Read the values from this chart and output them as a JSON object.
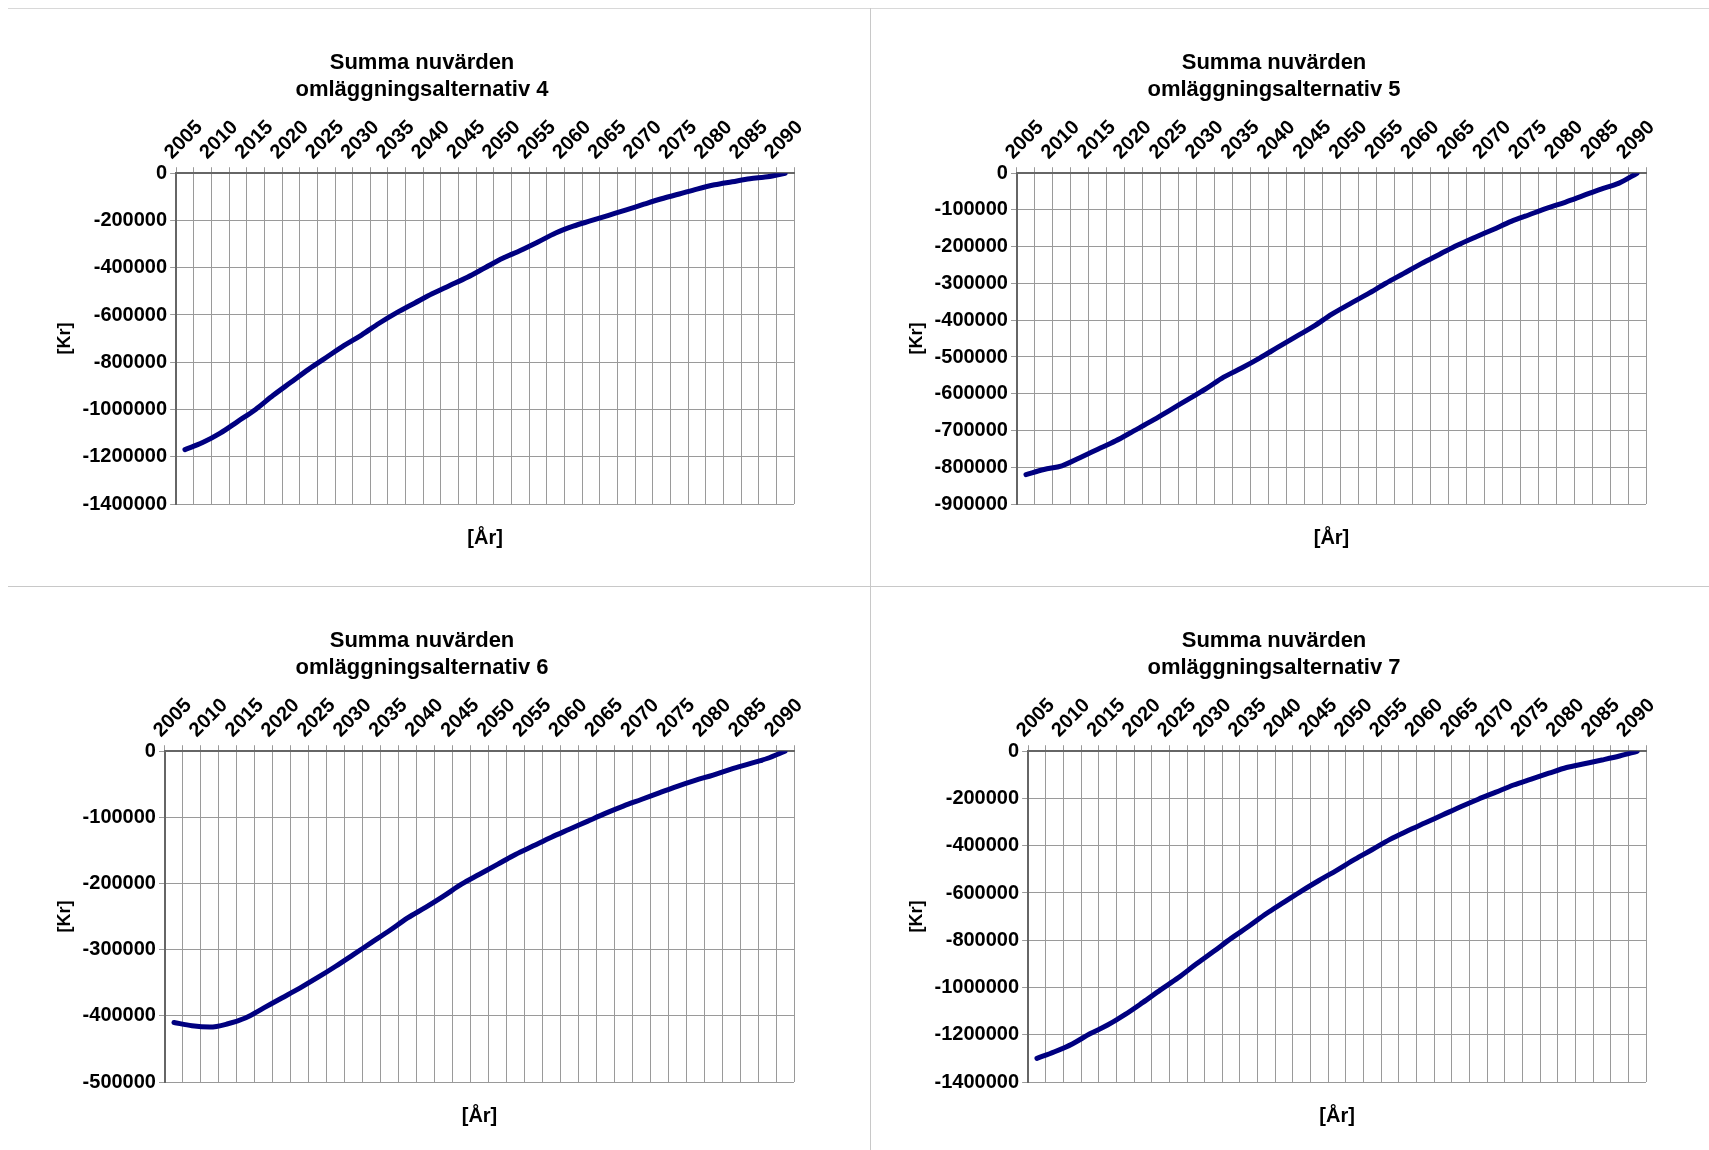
{
  "chart_data": [
    {
      "type": "line",
      "title": "Summa nuvärden\nomläggningsalternativ 4",
      "xlabel": "[År]",
      "ylabel": "[Kr]",
      "categories": [
        "2005",
        null,
        "2010",
        null,
        "2015",
        null,
        "2020",
        null,
        "2025",
        null,
        "2030",
        null,
        "2035",
        null,
        "2040",
        null,
        "2045",
        null,
        "2050",
        null,
        "2055",
        null,
        "2060",
        null,
        "2065",
        null,
        "2070",
        null,
        "2075",
        null,
        "2080",
        null,
        "2085",
        null,
        "2090"
      ],
      "series": [
        {
          "color": "#000080",
          "values": [
            -1170000,
            -1140000,
            -1100000,
            -1050000,
            -1000000,
            -940000,
            -885000,
            -830000,
            -780000,
            -730000,
            -685000,
            -635000,
            -590000,
            -550000,
            -510000,
            -475000,
            -440000,
            -400000,
            -360000,
            -327000,
            -291000,
            -253000,
            -224000,
            -201000,
            -178000,
            -155000,
            -131000,
            -108000,
            -88000,
            -67000,
            -49000,
            -36000,
            -23000,
            -15000,
            0
          ]
        }
      ],
      "ylim": [
        -1400000,
        0
      ],
      "yticks": [
        -1400000,
        -1200000,
        -1000000,
        -800000,
        -600000,
        -400000,
        -200000,
        0
      ],
      "grid": true,
      "marker": "none",
      "line_style": "solid"
    },
    {
      "type": "line",
      "title": "Summa nuvärden\nomläggningsalternativ 5",
      "xlabel": "[År]",
      "ylabel": "[Kr]",
      "categories": [
        "2005",
        null,
        "2010",
        null,
        "2015",
        null,
        "2020",
        null,
        "2025",
        null,
        "2030",
        null,
        "2035",
        null,
        "2040",
        null,
        "2045",
        null,
        "2050",
        null,
        "2055",
        null,
        "2060",
        null,
        "2065",
        null,
        "2070",
        null,
        "2075",
        null,
        "2080",
        null,
        "2085",
        null,
        "2090"
      ],
      "series": [
        {
          "color": "#000080",
          "values": [
            -820000,
            -806000,
            -796000,
            -774000,
            -751000,
            -728000,
            -701000,
            -674000,
            -645000,
            -616000,
            -587000,
            -555000,
            -530000,
            -503000,
            -474000,
            -445000,
            -417000,
            -384000,
            -356000,
            -329000,
            -300000,
            -273000,
            -246000,
            -221000,
            -196000,
            -174000,
            -153000,
            -131000,
            -113000,
            -95000,
            -79000,
            -61000,
            -43000,
            -27000,
            0
          ]
        }
      ],
      "ylim": [
        -900000,
        0
      ],
      "yticks": [
        -900000,
        -800000,
        -700000,
        -600000,
        -500000,
        -400000,
        -300000,
        -200000,
        -100000,
        0
      ],
      "grid": true,
      "marker": "none",
      "line_style": "solid"
    },
    {
      "type": "line",
      "title": "Summa nuvärden\nomläggningsalternativ 6",
      "xlabel": "[År]",
      "ylabel": "[Kr]",
      "categories": [
        "2005",
        null,
        "2010",
        null,
        "2015",
        null,
        "2020",
        null,
        "2025",
        null,
        "2030",
        null,
        "2035",
        null,
        "2040",
        null,
        "2045",
        null,
        "2050",
        null,
        "2055",
        null,
        "2060",
        null,
        "2065",
        null,
        "2070",
        null,
        "2075",
        null,
        "2080",
        null,
        "2085",
        null,
        "2090"
      ],
      "series": [
        {
          "color": "#000080",
          "values": [
            -410000,
            -415000,
            -417000,
            -412000,
            -403000,
            -388000,
            -373000,
            -358000,
            -342000,
            -325000,
            -307000,
            -289000,
            -271000,
            -252000,
            -236000,
            -219000,
            -201000,
            -186000,
            -171000,
            -156000,
            -143000,
            -130000,
            -118000,
            -106000,
            -94000,
            -83000,
            -73000,
            -63000,
            -53000,
            -44000,
            -36000,
            -27000,
            -19000,
            -11000,
            0
          ]
        }
      ],
      "ylim": [
        -500000,
        0
      ],
      "yticks": [
        -500000,
        -400000,
        -300000,
        -200000,
        -100000,
        0
      ],
      "grid": true,
      "marker": "none",
      "line_style": "solid"
    },
    {
      "type": "line",
      "title": "Summa nuvärden\nomläggningsalternativ 7",
      "xlabel": "[År]",
      "ylabel": "[Kr]",
      "categories": [
        "2005",
        null,
        "2010",
        null,
        "2015",
        null,
        "2020",
        null,
        "2025",
        null,
        "2030",
        null,
        "2035",
        null,
        "2040",
        null,
        "2045",
        null,
        "2050",
        null,
        "2055",
        null,
        "2060",
        null,
        "2065",
        null,
        "2070",
        null,
        "2075",
        null,
        "2080",
        null,
        "2085",
        null,
        "2090"
      ],
      "series": [
        {
          "color": "#000080",
          "values": [
            -1300000,
            -1272000,
            -1239000,
            -1196000,
            -1159000,
            -1114000,
            -1063000,
            -1010000,
            -959000,
            -902000,
            -848000,
            -792000,
            -741000,
            -687000,
            -639000,
            -591000,
            -546000,
            -503000,
            -458000,
            -416000,
            -373000,
            -337000,
            -303000,
            -269000,
            -235000,
            -203000,
            -173000,
            -143000,
            -118000,
            -93000,
            -69000,
            -53000,
            -37000,
            -20000,
            0
          ]
        }
      ],
      "ylim": [
        -1400000,
        0
      ],
      "yticks": [
        -1400000,
        -1200000,
        -1000000,
        -800000,
        -600000,
        -400000,
        -200000,
        0
      ],
      "grid": true,
      "marker": "none",
      "line_style": "solid"
    }
  ]
}
